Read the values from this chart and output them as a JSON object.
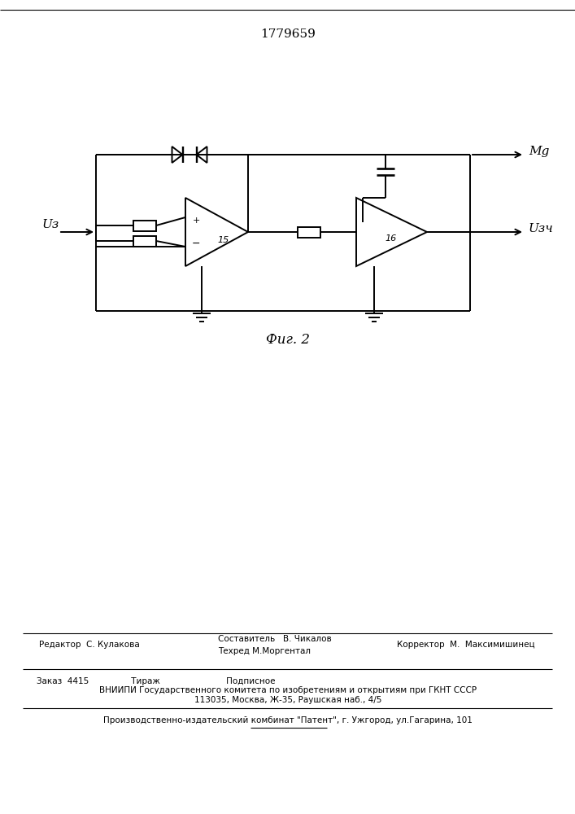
{
  "patent_number": "1779659",
  "fig_label": "Фиг. 2",
  "label_Uz": "Uз",
  "label_Mg": "Mg",
  "label_Uzch": "Uзч",
  "editor_line1": "Редактор  С. Кулакова",
  "editor_line2": "Составитель   В. Чикалов",
  "editor_line3": "Техред М.Моргентал",
  "editor_line4": "Корректор  М.  Максимишинец",
  "order_line": "Заказ  4415                Тираж                         Подписное",
  "vniiipi_line": "ВНИИПИ Государственного комитета по изобретениям и открытиям при ГКНТ СССР",
  "address_line": "113035, Москва, Ж-35, Раушская наб., 4/5",
  "patent_line": "Производственно-издательский комбинат \"Патент\", г. Ужгород, ул.Гагарина, 101"
}
